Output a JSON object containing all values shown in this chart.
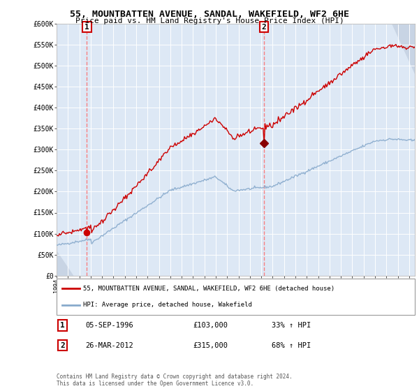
{
  "title1": "55, MOUNTBATTEN AVENUE, SANDAL, WAKEFIELD, WF2 6HE",
  "title2": "Price paid vs. HM Land Registry's House Price Index (HPI)",
  "legend_label1": "55, MOUNTBATTEN AVENUE, SANDAL, WAKEFIELD, WF2 6HE (detached house)",
  "legend_label2": "HPI: Average price, detached house, Wakefield",
  "annotation1_date": "05-SEP-1996",
  "annotation1_price": "£103,000",
  "annotation1_hpi": "33% ↑ HPI",
  "annotation2_date": "26-MAR-2012",
  "annotation2_price": "£315,000",
  "annotation2_hpi": "68% ↑ HPI",
  "footer": "Contains HM Land Registry data © Crown copyright and database right 2024.\nThis data is licensed under the Open Government Licence v3.0.",
  "house_color": "#cc0000",
  "hpi_color": "#88aacc",
  "ylim": [
    0,
    600000
  ],
  "sale1_year_num": 1996.67,
  "sale1_price": 103000,
  "sale2_year_num": 2012.23,
  "sale2_price": 315000,
  "xmin": 1994.0,
  "xmax": 2025.5,
  "background_color": "#dde8f5"
}
